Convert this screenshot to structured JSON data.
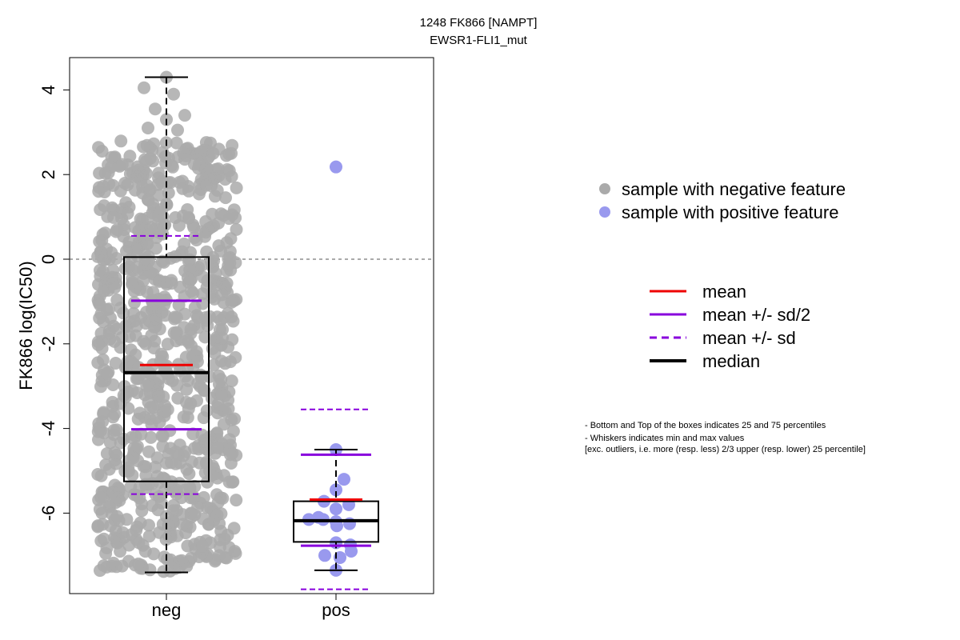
{
  "chart_data": {
    "type": "boxplot-strip",
    "title": "1248 FK866 [NAMPT]",
    "subtitle": "EWSR1-FLI1_mut",
    "ylabel": "FK866 log(IC50)",
    "xlabel": "",
    "ylim": [
      -7.8,
      4.8
    ],
    "yticks": [
      -6,
      -4,
      -2,
      0,
      2,
      4
    ],
    "reference_line": 0,
    "categories": [
      "neg",
      "pos"
    ],
    "groups": [
      {
        "category": "neg",
        "color": "#aaaaaa",
        "box": {
          "q1": -5.25,
          "median": -2.68,
          "q3": 0.05,
          "whisker_low": -7.4,
          "whisker_high": 4.3
        },
        "mean": -2.5,
        "mean_minus_half_sd": -4.02,
        "mean_plus_half_sd": -0.98,
        "mean_minus_sd": -5.55,
        "mean_plus_sd": 0.55,
        "n_points": 900,
        "points_range": [
          -7.4,
          4.3
        ],
        "outliers": [
          4.05,
          3.9,
          3.55,
          3.4,
          3.3,
          3.1,
          3.05
        ]
      },
      {
        "category": "pos",
        "color": "#9999ee",
        "box": {
          "q1": -6.68,
          "median": -6.18,
          "q3": -5.72,
          "whisker_low": -7.35,
          "whisker_high": -4.5
        },
        "mean": -5.68,
        "mean_minus_half_sd": -6.77,
        "mean_plus_half_sd": -4.62,
        "mean_minus_sd": -7.8,
        "mean_plus_sd": -3.55,
        "points": [
          2.18,
          -4.5,
          -5.2,
          -5.45,
          -5.72,
          -5.8,
          -5.9,
          -6.1,
          -6.15,
          -6.15,
          -6.2,
          -6.25,
          -6.3,
          -6.7,
          -6.75,
          -6.9,
          -7.0,
          -7.05,
          -7.35
        ]
      }
    ],
    "legend": {
      "points": [
        {
          "label": "sample with negative feature",
          "color": "#aaaaaa"
        },
        {
          "label": "sample with positive feature",
          "color": "#9999ee"
        }
      ],
      "lines": [
        {
          "label": "mean",
          "color": "#ee0000",
          "style": "solid"
        },
        {
          "label": "mean +/- sd/2",
          "color": "#8800dd",
          "style": "solid"
        },
        {
          "label": "mean +/- sd",
          "color": "#8800dd",
          "style": "dashed"
        },
        {
          "label": "median",
          "color": "#000000",
          "style": "bold"
        }
      ]
    },
    "notes": [
      "- Bottom and Top of the boxes indicates 25 and 75 percentiles",
      "- Whiskers indicates min and max values",
      "[exc. outliers, i.e. more (resp. less) 2/3 upper (resp. lower) 25 percentile]"
    ]
  }
}
